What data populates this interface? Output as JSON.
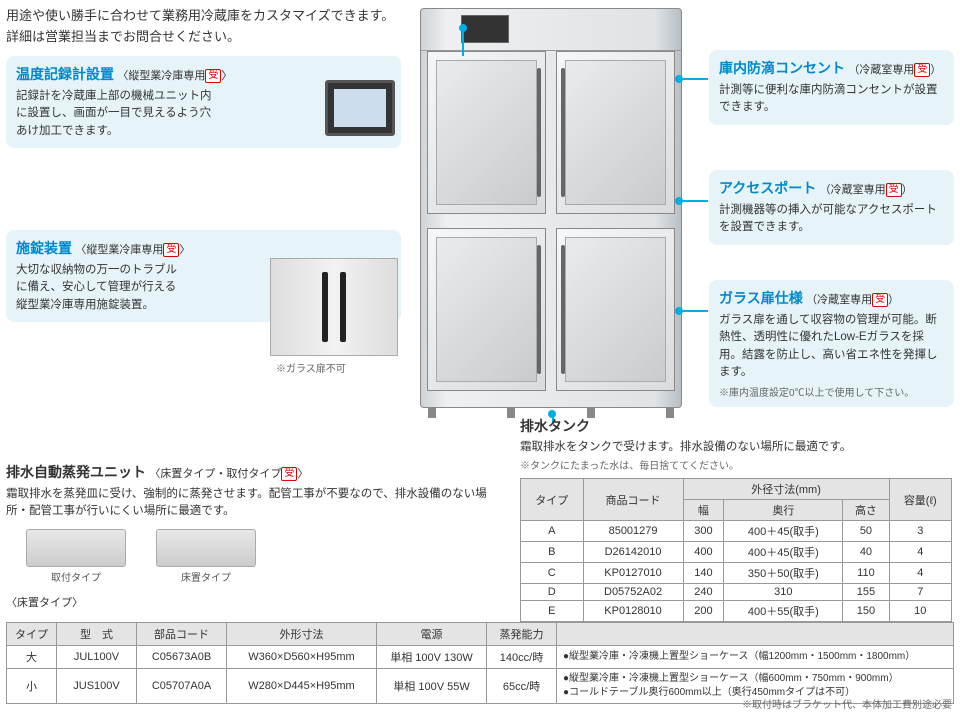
{
  "intro": "用途や使い勝手に合わせて業務用冷蔵庫をカスタマイズできます。詳細は営業担当までお問合せください。",
  "badge": "受",
  "features": {
    "f1": {
      "title": "温度記録計設置",
      "sub": "〈縦型業冷庫専用",
      "sub_end": "〉",
      "desc": "記録計を冷蔵庫上部の機械ユニット内に設置し、画面が一目で見えるよう穴あけ加工できます。"
    },
    "f2": {
      "title": "施錠装置",
      "sub": "〈縦型業冷庫専用",
      "sub_end": "〉",
      "desc": "大切な収納物の万一のトラブルに備え、安心して管理が行える縦型業冷庫専用施錠装置。",
      "note": "※ガラス扉不可"
    },
    "f3": {
      "title": "庫内防滴コンセント",
      "sub": "（冷蔵室専用",
      "sub_end": "）",
      "desc": "計測等に便利な庫内防滴コンセントが設置できます。"
    },
    "f4": {
      "title": "アクセスポート",
      "sub": "（冷蔵室専用",
      "sub_end": "）",
      "desc": "計測機器等の挿入が可能なアクセスポートを設置できます。"
    },
    "f5": {
      "title": "ガラス扉仕様",
      "sub": "（冷蔵室専用",
      "sub_end": "）",
      "desc": "ガラス扉を通して収容物の管理が可能。断熱性、透明性に優れたLow-Eガラスを採用。結露を防止し、高い省エネ性を発揮します。",
      "note": "※庫内温度設定0℃以上で使用して下さい。"
    }
  },
  "tank": {
    "title": "排水タンク",
    "desc": "霜取排水をタンクで受けます。排水設備のない場所に最適です。",
    "note": "※タンクにたまった水は、毎日捨ててください。",
    "headers": {
      "type": "タイプ",
      "code": "商品コード",
      "dims": "外径寸法(mm)",
      "w": "幅",
      "d": "奥行",
      "h": "高さ",
      "cap": "容量(ℓ)"
    },
    "rows": [
      {
        "t": "A",
        "c": "85001279",
        "w": "300",
        "d": "400＋45(取手)",
        "h": "50",
        "cap": "3"
      },
      {
        "t": "B",
        "c": "D26142010",
        "w": "400",
        "d": "400＋45(取手)",
        "h": "40",
        "cap": "4"
      },
      {
        "t": "C",
        "c": "KP0127010",
        "w": "140",
        "d": "350＋50(取手)",
        "h": "110",
        "cap": "4"
      },
      {
        "t": "D",
        "c": "D05752A02",
        "w": "240",
        "d": "310",
        "h": "155",
        "cap": "7"
      },
      {
        "t": "E",
        "c": "KP0128010",
        "w": "200",
        "d": "400＋55(取手)",
        "h": "150",
        "cap": "10"
      }
    ]
  },
  "evap": {
    "title": "排水自動蒸発ユニット",
    "sub": "〈床置タイプ・取付タイプ",
    "sub_end": "〉",
    "desc": "霜取排水を蒸発皿に受け、強制的に蒸発させます。配管工事が不要なので、排水設備のない場所・配管工事が行いにくい場所に最適です。",
    "img_labels": {
      "a": "取付タイプ",
      "b": "床置タイプ"
    },
    "floor_label": "〈床置タイプ〉",
    "headers": {
      "type": "タイプ",
      "model": "型　式",
      "part": "部品コード",
      "dim": "外形寸法",
      "power": "電源",
      "cap": "蒸発能力"
    },
    "rows": [
      {
        "t": "大",
        "m": "JUL100V",
        "p": "C05673A0B",
        "d": "W360×D560×H95mm",
        "pw": "単相 100V 130W",
        "c": "140cc/時",
        "n": "●縦型業冷庫・冷凍機上置型ショーケース（幅1200mm・1500mm・1800mm）"
      },
      {
        "t": "小",
        "m": "JUS100V",
        "p": "C05707A0A",
        "d": "W280×D445×H95mm",
        "pw": "単相 100V 55W",
        "c": "65cc/時",
        "n": "●縦型業冷庫・冷凍機上置型ショーケース（幅600mm・750mm・900mm）\n●コールドテーブル奥行600mm以上（奥行450mmタイプは不可）"
      }
    ],
    "foot": "※取付時はブラケット代、本体加工費別途必要"
  }
}
